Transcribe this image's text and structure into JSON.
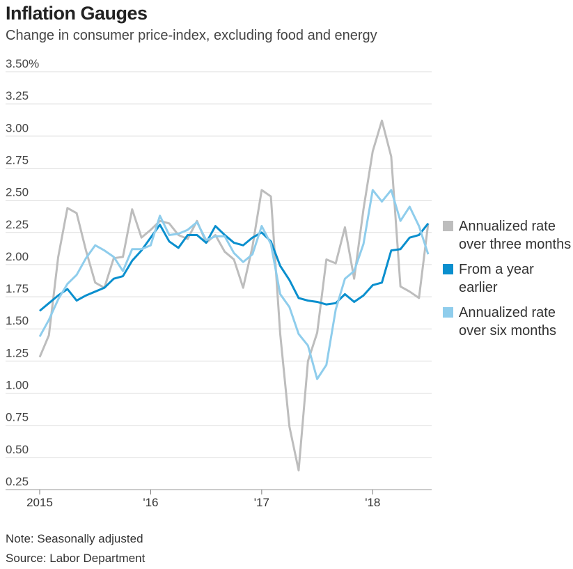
{
  "chart_data": {
    "type": "line",
    "title": "Inflation Gauges",
    "subtitle": "Change in consumer price-index, excluding food and energy",
    "note": "Note: Seasonally adjusted",
    "source": "Source: Labor Department",
    "x": [
      2015,
      2015.083,
      2015.167,
      2015.25,
      2015.333,
      2015.417,
      2015.5,
      2015.583,
      2015.667,
      2015.75,
      2015.833,
      2015.917,
      2016,
      2016.083,
      2016.167,
      2016.25,
      2016.333,
      2016.417,
      2016.5,
      2016.583,
      2016.667,
      2016.75,
      2016.833,
      2016.917,
      2017,
      2017.083,
      2017.167,
      2017.25,
      2017.333,
      2017.417,
      2017.5,
      2017.583,
      2017.667,
      2017.75,
      2017.833,
      2017.917,
      2018,
      2018.083,
      2018.167,
      2018.25,
      2018.333,
      2018.417,
      2018.5
    ],
    "series": [
      {
        "name": "Annualized rate over three months",
        "color": "#bdbdbd",
        "values": [
          1.28,
          1.45,
          2.06,
          2.44,
          2.4,
          2.11,
          1.86,
          1.82,
          2.05,
          2.06,
          2.43,
          2.21,
          2.27,
          2.34,
          2.32,
          2.23,
          2.2,
          2.34,
          2.17,
          2.23,
          2.1,
          2.04,
          1.82,
          2.14,
          2.58,
          2.53,
          1.46,
          0.74,
          0.4,
          1.25,
          1.47,
          2.04,
          2.01,
          2.29,
          1.89,
          2.43,
          2.88,
          3.12,
          2.84,
          1.83,
          1.79,
          1.74,
          2.32
        ]
      },
      {
        "name": "From a year earlier",
        "color": "#0a8fce",
        "values": [
          1.64,
          1.7,
          1.76,
          1.81,
          1.72,
          1.76,
          1.79,
          1.82,
          1.89,
          1.91,
          2.03,
          2.11,
          2.21,
          2.31,
          2.18,
          2.13,
          2.23,
          2.23,
          2.17,
          2.3,
          2.23,
          2.17,
          2.15,
          2.21,
          2.25,
          2.18,
          1.99,
          1.88,
          1.74,
          1.72,
          1.71,
          1.69,
          1.7,
          1.77,
          1.71,
          1.76,
          1.84,
          1.86,
          2.11,
          2.12,
          2.21,
          2.23,
          2.32
        ]
      },
      {
        "name": "Annualized rate over six months",
        "color": "#8fcdec",
        "values": [
          1.44,
          1.57,
          1.73,
          1.85,
          1.92,
          2.05,
          2.15,
          2.11,
          2.06,
          1.95,
          2.12,
          2.12,
          2.15,
          2.38,
          2.23,
          2.24,
          2.27,
          2.33,
          2.19,
          2.22,
          2.22,
          2.09,
          2.02,
          2.08,
          2.3,
          2.16,
          1.77,
          1.67,
          1.46,
          1.37,
          1.11,
          1.22,
          1.65,
          1.89,
          1.95,
          2.16,
          2.58,
          2.49,
          2.58,
          2.34,
          2.45,
          2.3,
          2.08
        ]
      }
    ],
    "xlim": [
      2015,
      2018.5
    ],
    "xticks": [
      2015,
      {
        "value": 2016,
        "label": "'16"
      },
      {
        "value": 2017,
        "label": "'17"
      },
      {
        "value": 2018,
        "label": "'18"
      }
    ],
    "ylim": [
      0.25,
      3.5
    ],
    "yticks": [
      {
        "value": 3.5,
        "label": "3.50%"
      },
      3.25,
      {
        "value": 3,
        "label": "3.00"
      },
      2.75,
      {
        "value": 2.5,
        "label": "2.50"
      },
      2.25,
      {
        "value": 2,
        "label": "2.00"
      },
      1.75,
      {
        "value": 1.5,
        "label": "1.50"
      },
      1.25,
      {
        "value": 1,
        "label": "1.00"
      },
      0.75,
      {
        "value": 0.5,
        "label": "0.50"
      },
      0.25
    ],
    "grid": true,
    "legend": "right"
  }
}
